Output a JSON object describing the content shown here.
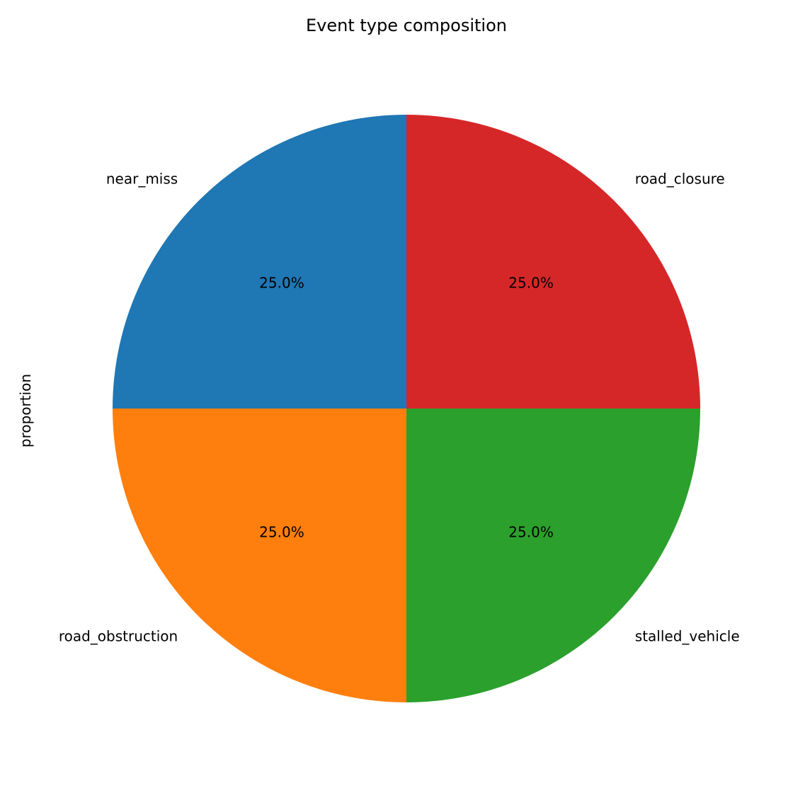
{
  "chart_data": {
    "type": "pie",
    "title": "Event type composition",
    "ylabel": "proportion",
    "categories": [
      "near_miss",
      "road_obstruction",
      "stalled_vehicle",
      "road_closure"
    ],
    "values": [
      25.0,
      25.0,
      25.0,
      25.0
    ],
    "percent_labels": [
      "25.0%",
      "25.0%",
      "25.0%",
      "25.0%"
    ],
    "colors": [
      "#1f77b4",
      "#ff7f0e",
      "#2ca02c",
      "#d62728"
    ],
    "start_angle_deg": 90,
    "direction": "counterclockwise"
  }
}
